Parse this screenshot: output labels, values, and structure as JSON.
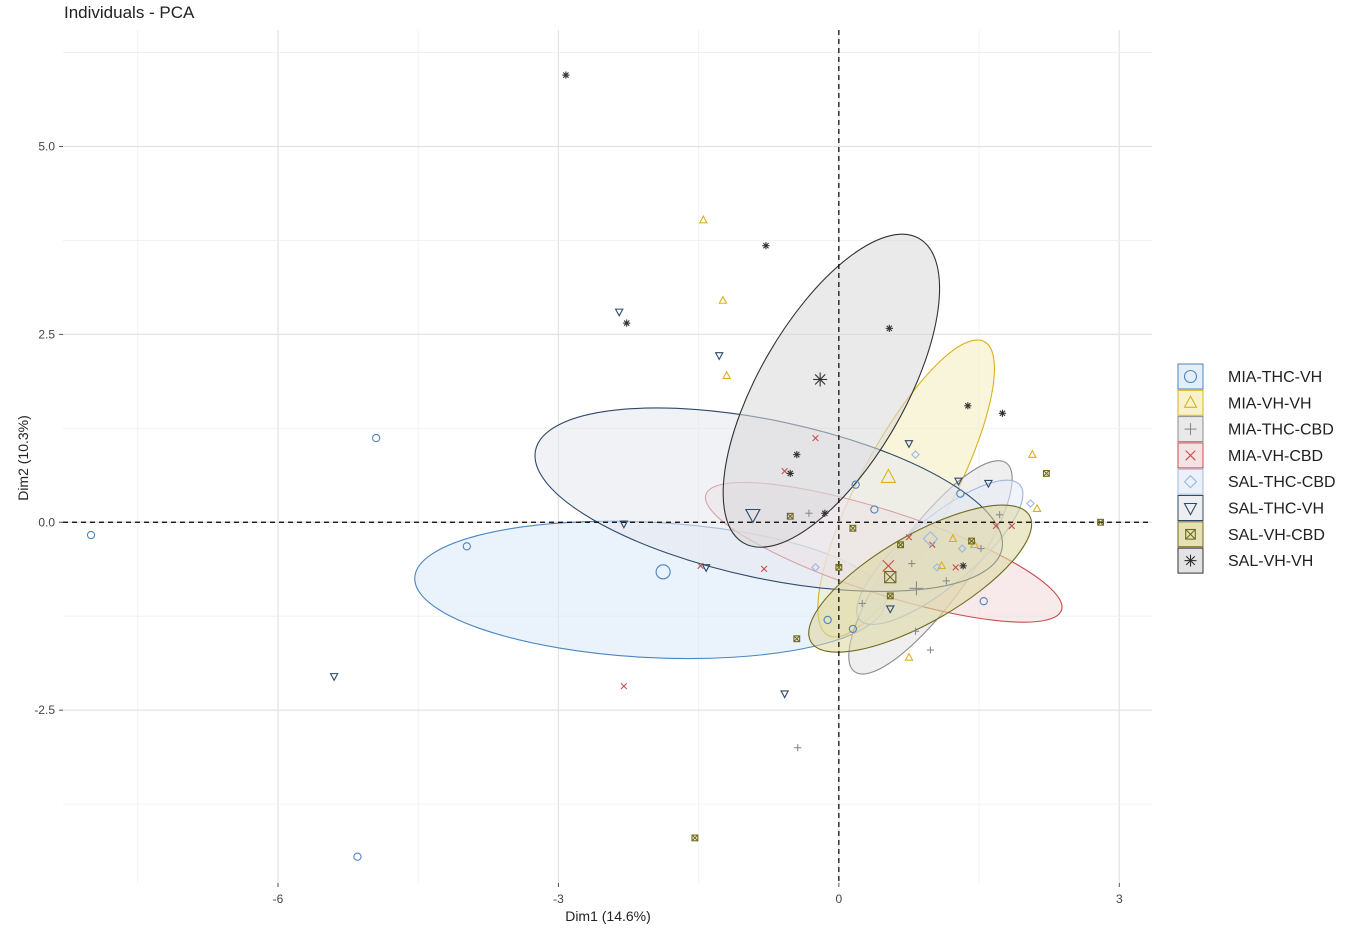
{
  "chart_data": {
    "type": "scatter",
    "title": "Individuals - PCA",
    "xlabel": "Dim1 (14.6%)",
    "ylabel": "Dim2 (10.3%)",
    "xlim": [
      -8.3,
      3.35
    ],
    "ylim": [
      -4.8,
      6.55
    ],
    "x_ticks": [
      -6,
      -3,
      0,
      3
    ],
    "x_tick_labels": [
      "-6",
      "-3",
      "0",
      "3"
    ],
    "y_ticks": [
      -2.5,
      0,
      2.5,
      5
    ],
    "y_tick_labels": [
      "-2.5",
      "0.0",
      "2.5",
      "5.0"
    ],
    "grid": true,
    "legend_position": "right",
    "series": [
      {
        "name": "MIA-THC-VH",
        "color": "#4a86c0",
        "fill": "#d9e8f7",
        "marker": "circle",
        "points": [
          [
            -8.0,
            -0.17
          ],
          [
            -4.95,
            1.12
          ],
          [
            -5.15,
            -4.45
          ],
          [
            -3.98,
            -0.32
          ],
          [
            0.18,
            0.5
          ],
          [
            0.38,
            0.17
          ],
          [
            -0.12,
            -1.3
          ],
          [
            0.15,
            -1.42
          ],
          [
            1.3,
            0.38
          ],
          [
            1.55,
            -1.05
          ]
        ],
        "centroid": [
          -1.88,
          -0.66
        ],
        "ellipse": {
          "cx": -2.02,
          "cy": -0.9,
          "rx": 2.52,
          "ry": 0.9,
          "angle_deg": 3
        }
      },
      {
        "name": "MIA-VH-VH",
        "color": "#d9b21b",
        "fill": "#f4ecbd",
        "marker": "triangle-up",
        "points": [
          [
            -1.45,
            4.02
          ],
          [
            -1.24,
            2.95
          ],
          [
            -1.2,
            1.95
          ],
          [
            0.75,
            -1.8
          ],
          [
            1.22,
            -0.22
          ],
          [
            1.1,
            -0.58
          ],
          [
            1.45,
            -0.3
          ],
          [
            2.07,
            0.9
          ],
          [
            2.12,
            0.18
          ]
        ],
        "centroid": [
          0.53,
          0.6
        ],
        "ellipse": {
          "cx": 0.72,
          "cy": 0.45,
          "rx": 1.78,
          "ry": 0.62,
          "angle_deg": -62
        }
      },
      {
        "name": "MIA-THC-CBD",
        "color": "#8c8c8c",
        "fill": "#e2e2e2",
        "marker": "plus",
        "points": [
          [
            -0.44,
            -3.0
          ],
          [
            -0.32,
            0.12
          ],
          [
            0.25,
            -1.08
          ],
          [
            0.82,
            -1.45
          ],
          [
            0.98,
            -1.7
          ],
          [
            1.15,
            -0.78
          ],
          [
            1.52,
            -0.35
          ],
          [
            1.72,
            0.1
          ],
          [
            0.78,
            -0.55
          ]
        ],
        "centroid": [
          0.83,
          -0.88
        ],
        "ellipse": {
          "cx": 0.98,
          "cy": -0.6,
          "rx": 1.38,
          "ry": 0.5,
          "angle_deg": -54
        }
      },
      {
        "name": "MIA-VH-CBD",
        "color": "#c84e4e",
        "fill": "#f2d8d8",
        "marker": "x",
        "points": [
          [
            -2.3,
            -2.18
          ],
          [
            -1.48,
            -0.58
          ],
          [
            -0.8,
            -0.62
          ],
          [
            -0.58,
            0.68
          ],
          [
            -0.25,
            1.12
          ],
          [
            0.75,
            -0.2
          ],
          [
            1.0,
            -0.3
          ],
          [
            1.25,
            -0.6
          ],
          [
            1.68,
            -0.05
          ],
          [
            1.85,
            -0.05
          ]
        ],
        "centroid": [
          0.53,
          -0.58
        ],
        "ellipse": {
          "cx": 0.48,
          "cy": -0.4,
          "rx": 2.0,
          "ry": 0.55,
          "angle_deg": 18
        }
      },
      {
        "name": "SAL-THC-CBD",
        "color": "#9fb8de",
        "fill": "#e5ecf7",
        "marker": "diamond",
        "points": [
          [
            -0.25,
            -0.6
          ],
          [
            0.82,
            0.9
          ],
          [
            1.05,
            -0.6
          ],
          [
            1.32,
            -0.35
          ],
          [
            2.05,
            0.25
          ]
        ],
        "centroid": [
          0.98,
          -0.22
        ],
        "ellipse": {
          "cx": 1.08,
          "cy": -0.4,
          "rx": 1.12,
          "ry": 0.45,
          "angle_deg": -40
        }
      },
      {
        "name": "SAL-THC-VH",
        "color": "#2e4a68",
        "fill": "#e5e8ee",
        "marker": "triangle-down",
        "points": [
          [
            -5.4,
            -2.05
          ],
          [
            -2.35,
            2.8
          ],
          [
            -1.28,
            2.22
          ],
          [
            -2.3,
            -0.02
          ],
          [
            -1.42,
            -0.6
          ],
          [
            -0.58,
            -2.28
          ],
          [
            0.55,
            -1.15
          ],
          [
            0.75,
            1.05
          ],
          [
            1.28,
            0.55
          ],
          [
            1.6,
            0.52
          ]
        ],
        "centroid": [
          -0.92,
          0.1
        ],
        "ellipse": {
          "cx": -0.75,
          "cy": 0.3,
          "rx": 2.55,
          "ry": 1.05,
          "angle_deg": 12
        }
      },
      {
        "name": "SAL-VH-CBD",
        "color": "#6e6b1c",
        "fill": "#dcd69e",
        "marker": "square-boxed",
        "points": [
          [
            -1.54,
            -4.2
          ],
          [
            -0.52,
            0.08
          ],
          [
            -0.45,
            -1.55
          ],
          [
            0.0,
            -0.6
          ],
          [
            0.15,
            -0.08
          ],
          [
            0.55,
            -0.98
          ],
          [
            0.66,
            -0.3
          ],
          [
            1.42,
            -0.25
          ],
          [
            2.22,
            0.65
          ],
          [
            2.8,
            0.0
          ]
        ],
        "centroid": [
          0.55,
          -0.73
        ],
        "ellipse": {
          "cx": 0.87,
          "cy": -0.75,
          "rx": 1.35,
          "ry": 0.58,
          "angle_deg": -30
        }
      },
      {
        "name": "SAL-VH-VH",
        "color": "#333333",
        "fill": "#d9d9d9",
        "marker": "asterisk",
        "points": [
          [
            -2.92,
            5.95
          ],
          [
            -2.27,
            2.65
          ],
          [
            -0.78,
            3.68
          ],
          [
            -0.45,
            0.9
          ],
          [
            -0.52,
            0.65
          ],
          [
            0.54,
            2.58
          ],
          [
            -0.15,
            0.12
          ],
          [
            1.38,
            1.55
          ],
          [
            1.75,
            1.45
          ],
          [
            1.33,
            -0.58
          ]
        ],
        "centroid": [
          -0.2,
          1.9
        ],
        "ellipse": {
          "cx": -0.08,
          "cy": 1.75,
          "rx": 1.88,
          "ry": 0.97,
          "angle_deg": -60
        }
      }
    ]
  }
}
